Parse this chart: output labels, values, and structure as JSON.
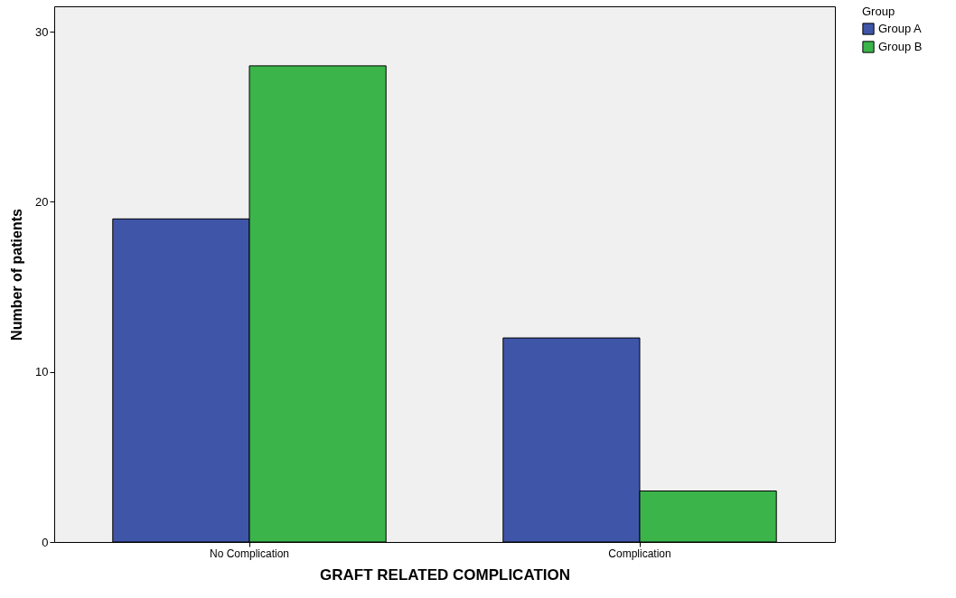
{
  "chart_data": {
    "type": "bar",
    "xlabel": "GRAFT RELATED COMPLICATION",
    "ylabel": "Number of patients",
    "legend_title": "Group",
    "categories": [
      "No Complication",
      "Complication"
    ],
    "series": [
      {
        "name": "Group A",
        "color": "#3f56a8",
        "values": [
          19,
          12
        ]
      },
      {
        "name": "Group B",
        "color": "#3bb54a",
        "values": [
          28,
          3
        ]
      }
    ],
    "ylim": [
      0,
      31.5
    ],
    "yticks": [
      0,
      10,
      20,
      30
    ],
    "grid": false,
    "legend": "top right"
  }
}
